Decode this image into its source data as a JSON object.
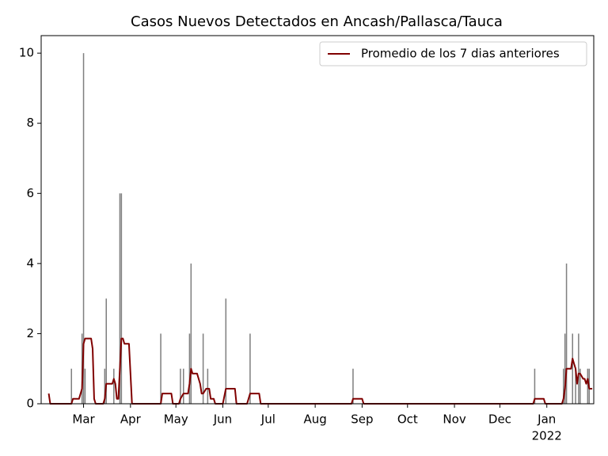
{
  "chart_data": {
    "type": "bar",
    "title": "Casos Nuevos Detectados en Ancash/Pallasca/Tauca",
    "xlim": [
      0,
      365
    ],
    "xticks": [
      {
        "value": 28,
        "label": "Mar"
      },
      {
        "value": 59,
        "label": "Apr"
      },
      {
        "value": 89,
        "label": "May"
      },
      {
        "value": 120,
        "label": "Jun"
      },
      {
        "value": 150,
        "label": "Jul"
      },
      {
        "value": 181,
        "label": "Aug"
      },
      {
        "value": 212,
        "label": "Sep"
      },
      {
        "value": 242,
        "label": "Oct"
      },
      {
        "value": 273,
        "label": "Nov"
      },
      {
        "value": 303,
        "label": "Dec"
      },
      {
        "value": 334,
        "label": "Jan"
      }
    ],
    "year_label": {
      "value": 334,
      "label": "2022"
    },
    "ylim": [
      0,
      10.5
    ],
    "yticks": [
      0,
      2,
      4,
      6,
      8,
      10
    ],
    "legend": "upper right",
    "series": [
      {
        "type": "bar",
        "color": "#808080",
        "x": [
          20,
          27,
          28,
          29,
          42,
          43,
          48,
          52,
          53,
          79,
          92,
          94,
          98,
          99,
          107,
          110,
          122,
          138,
          206,
          326,
          345,
          346,
          347,
          351,
          353,
          355,
          356,
          361,
          362
        ],
        "values": [
          1,
          2,
          10,
          1,
          1,
          3,
          1,
          6,
          6,
          2,
          1,
          1,
          2,
          4,
          2,
          1,
          3,
          2,
          1,
          1,
          1,
          2,
          4,
          2,
          1,
          2,
          1,
          1,
          1
        ]
      },
      {
        "type": "line",
        "name": "Promedio de los 7 dias anteriores",
        "color": "#800000",
        "x": [
          5,
          6,
          20,
          21,
          25,
          27,
          28,
          29,
          33,
          34,
          35,
          36,
          41,
          42,
          43,
          47,
          48,
          49,
          50,
          51,
          52,
          53,
          54,
          55,
          58,
          60,
          79,
          80,
          86,
          87,
          91,
          92,
          94,
          97,
          98,
          99,
          100,
          103,
          105,
          106,
          107,
          109,
          111,
          112,
          114,
          115,
          120,
          122,
          128,
          129,
          136,
          138,
          144,
          145,
          205,
          206,
          212,
          213,
          325,
          326,
          332,
          333,
          344,
          345,
          346,
          347,
          350,
          351,
          352,
          353,
          354,
          355,
          356,
          358,
          359,
          360,
          361,
          362,
          364
        ],
        "values": [
          0.29,
          0,
          0,
          0.14,
          0.14,
          0.43,
          1.71,
          1.86,
          1.86,
          1.57,
          0.14,
          0,
          0,
          0.14,
          0.57,
          0.57,
          0.71,
          0.57,
          0.14,
          0.14,
          1.0,
          1.86,
          1.86,
          1.71,
          1.71,
          0,
          0,
          0.29,
          0.29,
          0,
          0,
          0.14,
          0.29,
          0.29,
          0.57,
          1.0,
          0.86,
          0.86,
          0.57,
          0.29,
          0.29,
          0.43,
          0.43,
          0.14,
          0.14,
          0,
          0,
          0.43,
          0.43,
          0,
          0,
          0.29,
          0.29,
          0,
          0,
          0.14,
          0.14,
          0,
          0,
          0.14,
          0.14,
          0,
          0,
          0.14,
          0.43,
          1.0,
          1.0,
          1.29,
          1.14,
          1.0,
          0.57,
          0.86,
          0.86,
          0.71,
          0.71,
          0.57,
          0.71,
          0.43,
          0.43
        ]
      }
    ]
  }
}
